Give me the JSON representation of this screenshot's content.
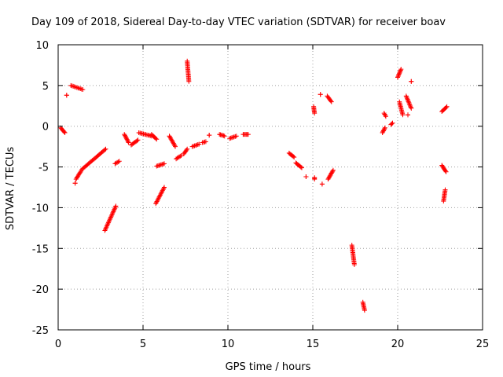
{
  "chart_data": {
    "type": "scatter",
    "title": "Day 109 of 2018, Sidereal Day-to-day VTEC variation (SDTVAR) for receiver boav",
    "xlabel": "GPS time / hours",
    "ylabel": "SDTVAR / TECUs",
    "xlim": [
      0,
      25
    ],
    "ylim": [
      -25,
      10
    ],
    "xticks": [
      0,
      5,
      10,
      15,
      20,
      25
    ],
    "yticks": [
      -25,
      -20,
      -15,
      -10,
      -5,
      0,
      5,
      10
    ],
    "xtick_labels": [
      "0",
      "5",
      "10",
      "15",
      "20",
      "25"
    ],
    "ytick_labels": [
      "-25",
      "-20",
      "-15",
      "-10",
      "-5",
      "0",
      "5",
      "10"
    ],
    "grid": true,
    "marker": "+",
    "marker_color": "#ff0000",
    "series": [
      {
        "name": "SDTVAR",
        "color": "#ff0000",
        "segments": [
          {
            "x": [
              0.15,
              0.4
            ],
            "y": [
              -0.2,
              -0.8
            ]
          },
          {
            "x": [
              0.5,
              0.5
            ],
            "y": [
              3.8,
              3.8
            ]
          },
          {
            "x": [
              0.75,
              1.45
            ],
            "y": [
              5.0,
              4.5
            ]
          },
          {
            "x": [
              1.0,
              1.0
            ],
            "y": [
              -7.0,
              -7.0
            ]
          },
          {
            "x": [
              1.05,
              1.35
            ],
            "y": [
              -6.5,
              -5.5
            ]
          },
          {
            "x": [
              1.4,
              2.8
            ],
            "y": [
              -5.3,
              -2.8
            ]
          },
          {
            "x": [
              2.75,
              3.4
            ],
            "y": [
              -12.8,
              -9.8
            ]
          },
          {
            "x": [
              3.35,
              3.6
            ],
            "y": [
              -4.6,
              -4.3
            ]
          },
          {
            "x": [
              3.9,
              4.15
            ],
            "y": [
              -1.0,
              -2.0
            ]
          },
          {
            "x": [
              4.3,
              4.7
            ],
            "y": [
              -2.3,
              -1.7
            ]
          },
          {
            "x": [
              4.75,
              5.5
            ],
            "y": [
              -0.8,
              -1.2
            ]
          },
          {
            "x": [
              5.5,
              5.8
            ],
            "y": [
              -1.0,
              -1.6
            ]
          },
          {
            "x": [
              5.75,
              6.25
            ],
            "y": [
              -9.5,
              -7.5
            ]
          },
          {
            "x": [
              5.8,
              6.25
            ],
            "y": [
              -4.9,
              -4.6
            ]
          },
          {
            "x": [
              6.55,
              6.9
            ],
            "y": [
              -1.2,
              -2.5
            ]
          },
          {
            "x": [
              6.95,
              7.25
            ],
            "y": [
              -4.0,
              -3.6
            ]
          },
          {
            "x": [
              7.4,
              7.6
            ],
            "y": [
              -3.4,
              -2.8
            ]
          },
          {
            "x": [
              7.6,
              7.7
            ],
            "y": [
              8.0,
              5.5
            ]
          },
          {
            "x": [
              7.9,
              8.3
            ],
            "y": [
              -2.5,
              -2.2
            ]
          },
          {
            "x": [
              8.5,
              8.7
            ],
            "y": [
              -2.0,
              -1.9
            ]
          },
          {
            "x": [
              8.9,
              8.9
            ],
            "y": [
              -1.1,
              -1.1
            ]
          },
          {
            "x": [
              9.5,
              9.8
            ],
            "y": [
              -1.0,
              -1.2
            ]
          },
          {
            "x": [
              10.1,
              10.5
            ],
            "y": [
              -1.5,
              -1.2
            ]
          },
          {
            "x": [
              10.9,
              11.2
            ],
            "y": [
              -1.0,
              -1.0
            ]
          },
          {
            "x": [
              13.6,
              13.9
            ],
            "y": [
              -3.3,
              -3.8
            ]
          },
          {
            "x": [
              14.0,
              14.35
            ],
            "y": [
              -4.5,
              -5.1
            ]
          },
          {
            "x": [
              14.6,
              14.6
            ],
            "y": [
              -6.2,
              -6.2
            ]
          },
          {
            "x": [
              15.05,
              15.1
            ],
            "y": [
              2.4,
              1.6
            ]
          },
          {
            "x": [
              15.1,
              15.1
            ],
            "y": [
              -6.3,
              -6.5
            ]
          },
          {
            "x": [
              15.45,
              15.45
            ],
            "y": [
              3.9,
              3.9
            ]
          },
          {
            "x": [
              15.55,
              15.55
            ],
            "y": [
              -7.1,
              -7.1
            ]
          },
          {
            "x": [
              15.85,
              16.1
            ],
            "y": [
              3.7,
              3.0
            ]
          },
          {
            "x": [
              15.9,
              16.2
            ],
            "y": [
              -6.5,
              -5.4
            ]
          },
          {
            "x": [
              17.3,
              17.45
            ],
            "y": [
              -14.6,
              -17.0
            ]
          },
          {
            "x": [
              17.95,
              18.05
            ],
            "y": [
              -21.6,
              -22.6
            ]
          },
          {
            "x": [
              19.1,
              19.25
            ],
            "y": [
              -0.8,
              -0.2
            ]
          },
          {
            "x": [
              19.2,
              19.3
            ],
            "y": [
              1.6,
              1.2
            ]
          },
          {
            "x": [
              19.6,
              19.7
            ],
            "y": [
              0.2,
              0.4
            ]
          },
          {
            "x": [
              20.0,
              20.2
            ],
            "y": [
              6.0,
              7.0
            ]
          },
          {
            "x": [
              20.1,
              20.3
            ],
            "y": [
              3.0,
              1.4
            ]
          },
          {
            "x": [
              20.5,
              20.8
            ],
            "y": [
              3.7,
              2.2
            ]
          },
          {
            "x": [
              20.6,
              20.6
            ],
            "y": [
              1.4,
              1.4
            ]
          },
          {
            "x": [
              20.8,
              20.8
            ],
            "y": [
              5.5,
              5.5
            ]
          },
          {
            "x": [
              22.6,
              22.9
            ],
            "y": [
              1.8,
              2.4
            ]
          },
          {
            "x": [
              22.6,
              22.85
            ],
            "y": [
              -4.8,
              -5.6
            ]
          },
          {
            "x": [
              22.7,
              22.8
            ],
            "y": [
              -9.2,
              -7.8
            ]
          }
        ]
      }
    ]
  }
}
